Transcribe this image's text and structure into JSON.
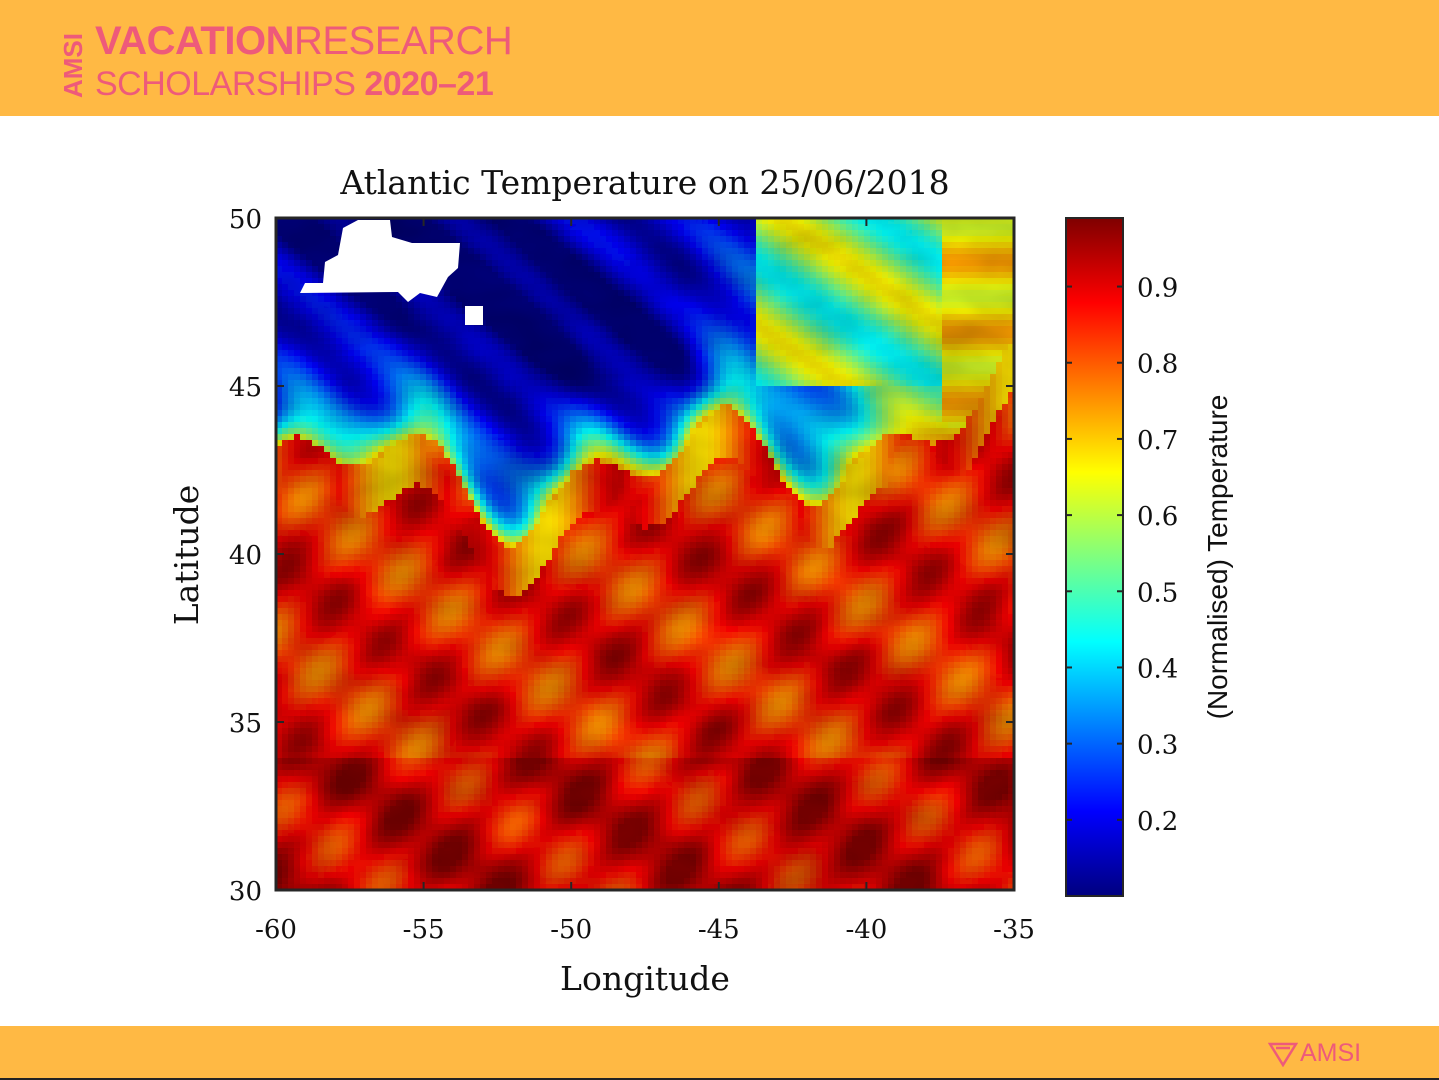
{
  "header": {
    "brand_vertical": "AMSI",
    "brand_bold": "VACATION",
    "brand_light": "RESEARCH",
    "brand_line2_light": "SCHOLARSHIPS",
    "brand_line2_bold": "2020–21",
    "brand_color": "#ee5a7a",
    "band_color": "#ffb944"
  },
  "footer": {
    "logo_text": "AMSI"
  },
  "chart_data": {
    "type": "heatmap",
    "title": "Atlantic Temperature on 25/06/2018",
    "xlabel": "Longitude",
    "ylabel": "Latitude",
    "xlim": [
      -60,
      -35
    ],
    "ylim": [
      30,
      50
    ],
    "x_ticks": [
      "-60",
      "-55",
      "-50",
      "-45",
      "-40",
      "-35"
    ],
    "y_ticks": [
      "30",
      "35",
      "40",
      "45",
      "50"
    ],
    "colorbar": {
      "label": "(Normalised) Temperature",
      "range": [
        0.1,
        0.99
      ],
      "ticks": [
        "0.2",
        "0.3",
        "0.4",
        "0.5",
        "0.6",
        "0.7",
        "0.8",
        "0.9"
      ],
      "colormap": "jet"
    },
    "colormap_stops": [
      "#00007f",
      "#0000ff",
      "#007fff",
      "#00ffff",
      "#7fff7f",
      "#ffff00",
      "#ff7f00",
      "#ff0000",
      "#7f0000"
    ],
    "land_color": "#ffffff",
    "summary_by_latitude": [
      {
        "lat_range": [
          45,
          50
        ],
        "value_range": [
          0.1,
          0.7
        ]
      },
      {
        "lat_range": [
          42,
          45
        ],
        "value_range": [
          0.3,
          0.75
        ]
      },
      {
        "lat_range": [
          40,
          42
        ],
        "value_range": [
          0.65,
          0.95
        ]
      },
      {
        "lat_range": [
          30,
          40
        ],
        "value_range": [
          0.8,
          0.97
        ]
      }
    ]
  }
}
